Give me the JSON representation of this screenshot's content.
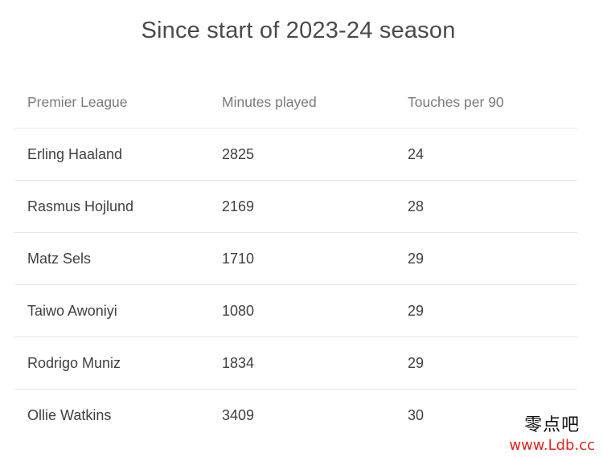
{
  "title": "Since start of 2023-24 season",
  "table": {
    "headers": [
      "Premier League",
      "Minutes played",
      "Touches per 90"
    ],
    "rows": [
      [
        "Erling Haaland",
        "2825",
        "24"
      ],
      [
        "Rasmus Hojlund",
        "2169",
        "28"
      ],
      [
        "Matz Sels",
        "1710",
        "29"
      ],
      [
        "Taiwo Awoniyi",
        "1080",
        "29"
      ],
      [
        "Rodrigo Muniz",
        "1834",
        "29"
      ],
      [
        "Ollie Watkins",
        "3409",
        "30"
      ]
    ]
  },
  "watermark": {
    "cn_text": "零点吧",
    "url": "www.Ldb.cc",
    "url_color": "#e0211f"
  }
}
